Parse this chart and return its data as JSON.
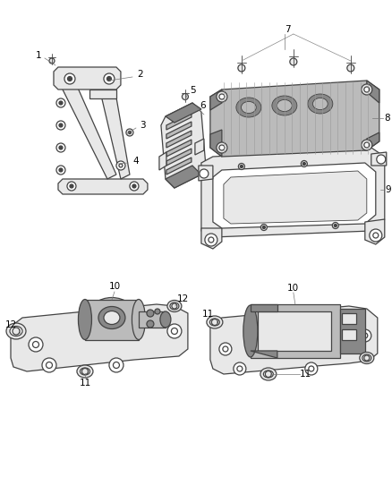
{
  "bg_color": "#ffffff",
  "fig_width": 4.38,
  "fig_height": 5.33,
  "dpi": 100,
  "line_color": "#444444",
  "text_color": "#000000",
  "fill_light": "#e8e8e8",
  "fill_mid": "#bbbbbb",
  "fill_dark": "#888888",
  "fill_white": "#ffffff",
  "lw_main": 0.9,
  "lw_thin": 0.6,
  "lw_leader": 0.5,
  "font_size": 7.5
}
